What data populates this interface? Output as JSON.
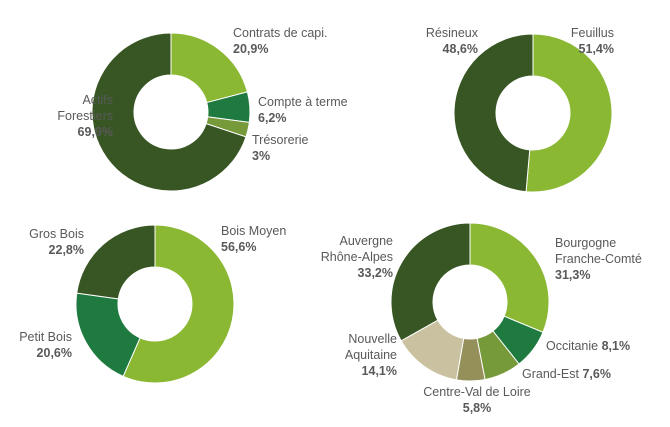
{
  "chart_data": [
    {
      "type": "pie",
      "donut": true,
      "slices": [
        {
          "label": "Contrats de capi.",
          "value": 20.9,
          "value_label": "20,9%",
          "color": "#8ab833"
        },
        {
          "label": "Compte à terme",
          "value": 6.2,
          "value_label": "6,2%",
          "color": "#1f7a3f"
        },
        {
          "label": "Trésorerie",
          "value": 3.0,
          "value_label": "3%",
          "color": "#76993a"
        },
        {
          "label": "Actifs Forestiers",
          "value": 69.9,
          "value_label": "69,9%",
          "color": "#375623"
        }
      ]
    },
    {
      "type": "pie",
      "donut": true,
      "slices": [
        {
          "label": "Feuillus",
          "value": 51.4,
          "value_label": "51,4%",
          "color": "#8ab833"
        },
        {
          "label": "Résineux",
          "value": 48.6,
          "value_label": "48,6%",
          "color": "#375623"
        }
      ]
    },
    {
      "type": "pie",
      "donut": true,
      "slices": [
        {
          "label": "Bois Moyen",
          "value": 56.6,
          "value_label": "56,6%",
          "color": "#8ab833"
        },
        {
          "label": "Petit Bois",
          "value": 20.6,
          "value_label": "20,6%",
          "color": "#1f7a3f"
        },
        {
          "label": "Gros Bois",
          "value": 22.8,
          "value_label": "22,8%",
          "color": "#375623"
        }
      ]
    },
    {
      "type": "pie",
      "donut": true,
      "slices": [
        {
          "label": "Bourgogne Franche-Comté",
          "value": 31.3,
          "value_label": "31,3%",
          "color": "#8ab833"
        },
        {
          "label": "Occitanie",
          "value": 8.1,
          "value_label": "8,1%",
          "color": "#1f7a3f"
        },
        {
          "label": "Grand-Est",
          "value": 7.6,
          "value_label": "7,6%",
          "color": "#76993a"
        },
        {
          "label": "Centre-Val de Loire",
          "value": 5.8,
          "value_label": "5,8%",
          "color": "#958f5a"
        },
        {
          "label": "Nouvelle Aquitaine",
          "value": 14.1,
          "value_label": "14,1%",
          "color": "#c9c1a0"
        },
        {
          "label": "Auvergne Rhône-Alpes",
          "value": 33.2,
          "value_label": "33,2%",
          "color": "#375623"
        }
      ]
    }
  ]
}
